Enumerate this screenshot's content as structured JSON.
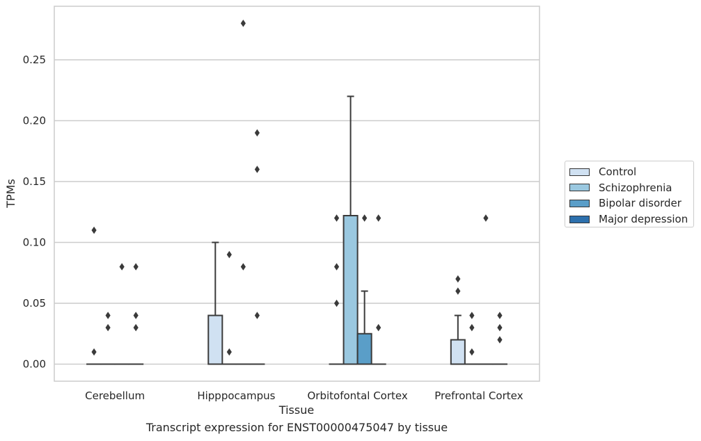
{
  "chart_data": {
    "type": "box",
    "xlabel": "Tissue",
    "ylabel": "TPMs",
    "categories": [
      "Cerebellum",
      "Hipppocampus",
      "Orbitofontal Cortex",
      "Prefrontal Cortex"
    ],
    "ylim": [
      -0.014,
      0.294
    ],
    "yticks": [
      0.0,
      0.05,
      0.1,
      0.15,
      0.2,
      0.25
    ],
    "ytick_labels": [
      "0.00",
      "0.05",
      "0.10",
      "0.15",
      "0.20",
      "0.25"
    ],
    "grid": true,
    "legend_position": "right",
    "series": [
      {
        "name": "Control",
        "color": "#d0e1f2",
        "boxes": [
          {
            "q1": 0,
            "median": 0,
            "q3": 0,
            "whisker_low": 0,
            "whisker_high": 0,
            "outliers": [
              0.01,
              0.11
            ]
          },
          {
            "q1": 0,
            "median": 0,
            "q3": 0.04,
            "whisker_low": 0,
            "whisker_high": 0.1,
            "outliers": []
          },
          {
            "q1": 0,
            "median": 0,
            "q3": 0,
            "whisker_low": 0,
            "whisker_high": 0,
            "outliers": [
              0.05,
              0.08,
              0.12
            ]
          },
          {
            "q1": 0,
            "median": 0,
            "q3": 0.02,
            "whisker_low": 0,
            "whisker_high": 0.04,
            "outliers": [
              0.06,
              0.07
            ]
          }
        ]
      },
      {
        "name": "Schizophrenia",
        "color": "#9ac8e0",
        "boxes": [
          {
            "q1": 0,
            "median": 0,
            "q3": 0,
            "whisker_low": 0,
            "whisker_high": 0,
            "outliers": [
              0.03,
              0.04
            ]
          },
          {
            "q1": 0,
            "median": 0,
            "q3": 0,
            "whisker_low": 0,
            "whisker_high": 0,
            "outliers": [
              0.01,
              0.09
            ]
          },
          {
            "q1": 0,
            "median": 0,
            "q3": 0.122,
            "whisker_low": 0,
            "whisker_high": 0.22,
            "outliers": []
          },
          {
            "q1": 0,
            "median": 0,
            "q3": 0,
            "whisker_low": 0,
            "whisker_high": 0,
            "outliers": [
              0.01,
              0.03,
              0.04
            ]
          }
        ]
      },
      {
        "name": "Bipolar disorder",
        "color": "#5a9ec8",
        "boxes": [
          {
            "q1": 0,
            "median": 0,
            "q3": 0,
            "whisker_low": 0,
            "whisker_high": 0,
            "outliers": [
              0.08
            ]
          },
          {
            "q1": 0,
            "median": 0,
            "q3": 0,
            "whisker_low": 0,
            "whisker_high": 0,
            "outliers": [
              0.08,
              0.28
            ]
          },
          {
            "q1": 0,
            "median": 0,
            "q3": 0.025,
            "whisker_low": 0,
            "whisker_high": 0.06,
            "outliers": [
              0.12
            ]
          },
          {
            "q1": 0,
            "median": 0,
            "q3": 0,
            "whisker_low": 0,
            "whisker_high": 0,
            "outliers": [
              0.12
            ]
          }
        ]
      },
      {
        "name": "Major depression",
        "color": "#2d70ad",
        "boxes": [
          {
            "q1": 0,
            "median": 0,
            "q3": 0,
            "whisker_low": 0,
            "whisker_high": 0,
            "outliers": [
              0.03,
              0.04,
              0.08
            ]
          },
          {
            "q1": 0,
            "median": 0,
            "q3": 0,
            "whisker_low": 0,
            "whisker_high": 0,
            "outliers": [
              0.04,
              0.16,
              0.19
            ]
          },
          {
            "q1": 0,
            "median": 0,
            "q3": 0,
            "whisker_low": 0,
            "whisker_high": 0,
            "outliers": [
              0.03,
              0.12
            ]
          },
          {
            "q1": 0,
            "median": 0,
            "q3": 0,
            "whisker_low": 0,
            "whisker_high": 0,
            "outliers": [
              0.02,
              0.03,
              0.04
            ]
          }
        ]
      }
    ],
    "caption": "Transcript expression for ENST00000475047 by tissue"
  }
}
